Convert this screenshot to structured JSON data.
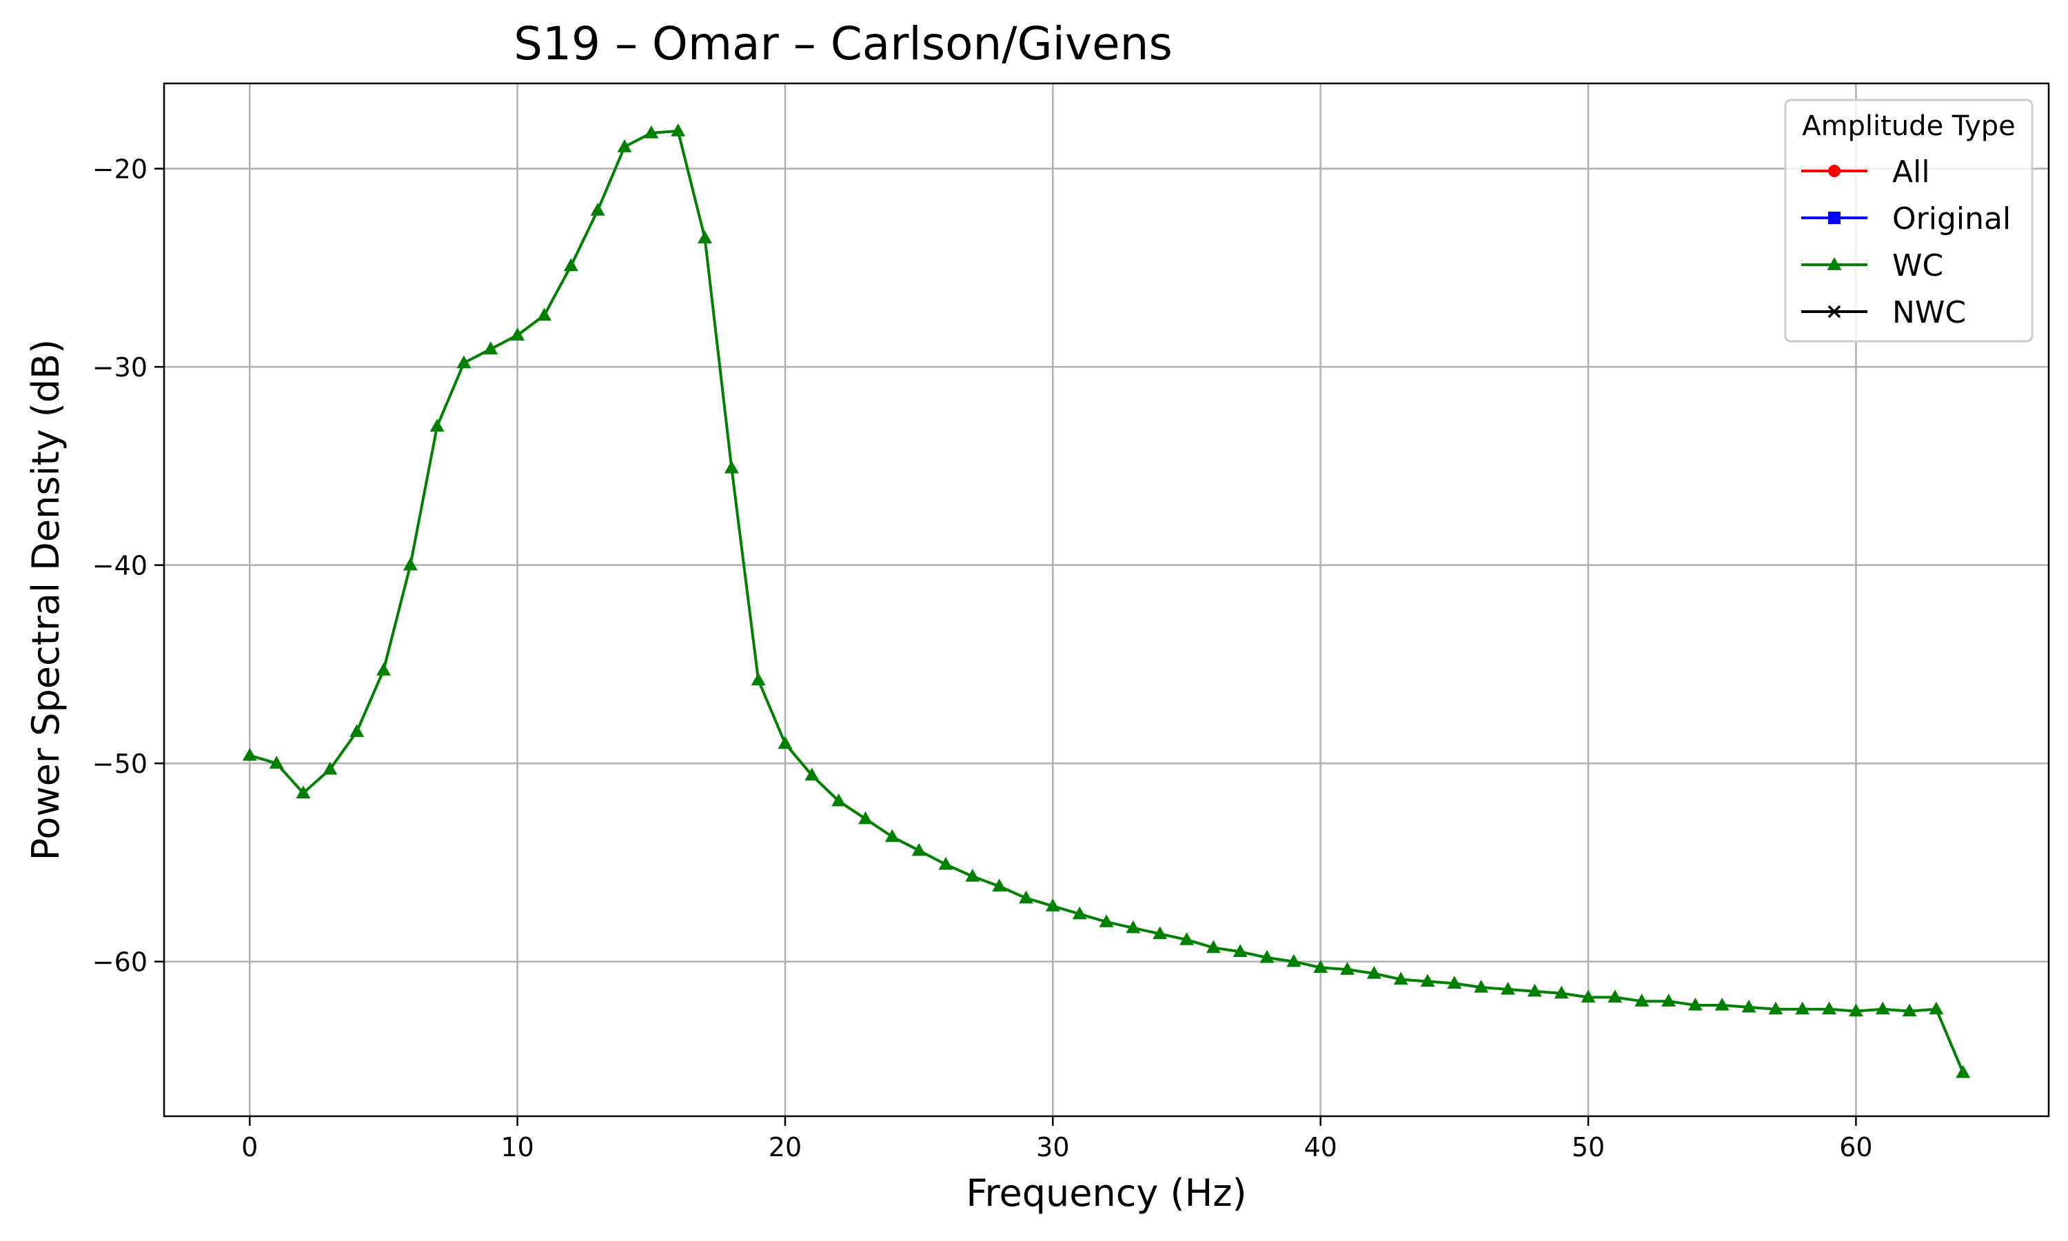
{
  "chart_data": {
    "type": "line",
    "title": "S19 – Omar – Carlson/Givens",
    "xlabel": "Frequency (Hz)",
    "ylabel": "Power Spectral Density (dB)",
    "xlim": [
      -3.2,
      67.2
    ],
    "ylim": [
      -67.8,
      -15.7
    ],
    "xticks": [
      0,
      10,
      20,
      30,
      40,
      50,
      60
    ],
    "yticks": [
      -60,
      -50,
      -40,
      -30,
      -20
    ],
    "grid": true,
    "legend": {
      "title": "Amplitude Type",
      "placement": "top-right",
      "entries": [
        {
          "label": "All",
          "color": "#ff0000",
          "marker": "circle"
        },
        {
          "label": "Original",
          "color": "#0000ff",
          "marker": "square"
        },
        {
          "label": "WC",
          "color": "#008000",
          "marker": "triangle"
        },
        {
          "label": "NWC",
          "color": "#000000",
          "marker": "x"
        }
      ]
    },
    "series": [
      {
        "name": "WC",
        "color": "#008000",
        "marker": "triangle",
        "x": [
          0,
          1,
          2,
          3,
          4,
          5,
          6,
          7,
          8,
          9,
          10,
          11,
          12,
          13,
          14,
          15,
          16,
          17,
          18,
          19,
          20,
          21,
          22,
          23,
          24,
          25,
          26,
          27,
          28,
          29,
          30,
          31,
          32,
          33,
          34,
          35,
          36,
          37,
          38,
          39,
          40,
          41,
          42,
          43,
          44,
          45,
          46,
          47,
          48,
          49,
          50,
          51,
          52,
          53,
          54,
          55,
          56,
          57,
          58,
          59,
          60,
          61,
          62,
          63,
          64
        ],
        "y": [
          -49.6,
          -50.0,
          -51.5,
          -50.3,
          -48.4,
          -45.3,
          -40.0,
          -33.0,
          -29.8,
          -29.1,
          -28.4,
          -27.4,
          -24.9,
          -22.1,
          -18.9,
          -18.2,
          -18.1,
          -23.5,
          -35.1,
          -45.8,
          -49.0,
          -50.6,
          -51.9,
          -52.8,
          -53.7,
          -54.4,
          -55.1,
          -55.7,
          -56.2,
          -56.8,
          -57.2,
          -57.6,
          -58.0,
          -58.3,
          -58.6,
          -58.9,
          -59.3,
          -59.5,
          -59.8,
          -60.0,
          -60.3,
          -60.4,
          -60.6,
          -60.9,
          -61.0,
          -61.1,
          -61.3,
          -61.4,
          -61.5,
          -61.6,
          -61.8,
          -61.8,
          -62.0,
          -62.0,
          -62.2,
          -62.2,
          -62.3,
          -62.4,
          -62.4,
          -62.4,
          -62.5,
          -62.4,
          -62.5,
          -62.4,
          -65.6
        ]
      }
    ]
  }
}
